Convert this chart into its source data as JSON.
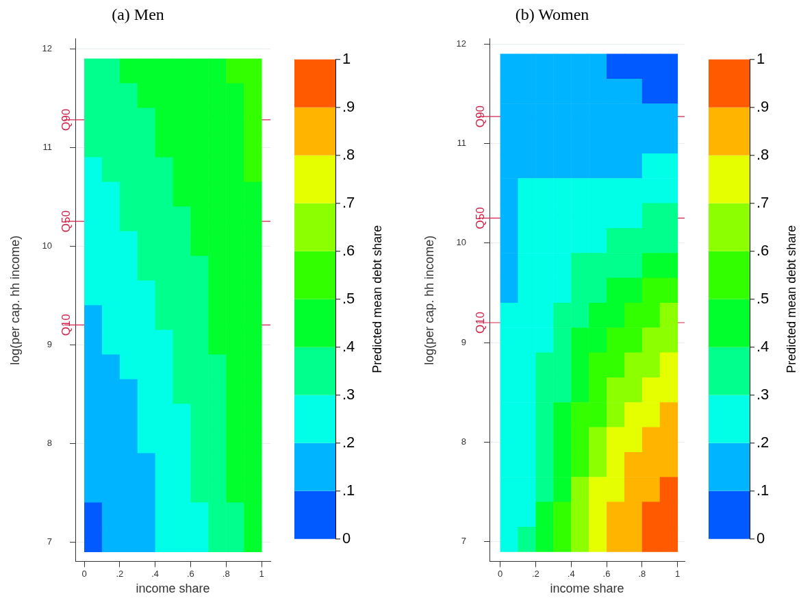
{
  "chart_data": [
    {
      "type": "heatmap",
      "title": "(a) Men",
      "xlabel": "income share",
      "ylabel": "log(per cap. hh income)",
      "clabel": "Predicted mean debt share",
      "x": [
        0.05,
        0.15,
        0.25,
        0.35,
        0.45,
        0.55,
        0.65,
        0.75,
        0.85,
        0.95
      ],
      "y": [
        11.775,
        11.525,
        11.275,
        11.025,
        10.775,
        10.525,
        10.275,
        10.025,
        9.775,
        9.525,
        9.275,
        9.025,
        8.775,
        8.525,
        8.275,
        8.025,
        7.775,
        7.525,
        7.275,
        7.025
      ],
      "cells": [
        [
          0.35,
          0.35,
          0.45,
          0.45,
          0.45,
          0.45,
          0.45,
          0.45,
          0.55,
          0.55
        ],
        [
          0.35,
          0.35,
          0.35,
          0.45,
          0.45,
          0.45,
          0.45,
          0.45,
          0.45,
          0.55
        ],
        [
          0.35,
          0.35,
          0.35,
          0.35,
          0.45,
          0.45,
          0.45,
          0.45,
          0.45,
          0.55
        ],
        [
          0.35,
          0.35,
          0.35,
          0.35,
          0.45,
          0.45,
          0.45,
          0.45,
          0.45,
          0.55
        ],
        [
          0.25,
          0.35,
          0.35,
          0.35,
          0.35,
          0.45,
          0.45,
          0.45,
          0.45,
          0.55
        ],
        [
          0.25,
          0.25,
          0.35,
          0.35,
          0.35,
          0.45,
          0.45,
          0.45,
          0.45,
          0.45
        ],
        [
          0.25,
          0.25,
          0.35,
          0.35,
          0.35,
          0.35,
          0.45,
          0.45,
          0.45,
          0.45
        ],
        [
          0.25,
          0.25,
          0.25,
          0.35,
          0.35,
          0.35,
          0.45,
          0.45,
          0.45,
          0.45
        ],
        [
          0.25,
          0.25,
          0.25,
          0.35,
          0.35,
          0.35,
          0.35,
          0.45,
          0.45,
          0.45
        ],
        [
          0.25,
          0.25,
          0.25,
          0.25,
          0.35,
          0.35,
          0.35,
          0.45,
          0.45,
          0.45
        ],
        [
          0.15,
          0.25,
          0.25,
          0.25,
          0.35,
          0.35,
          0.35,
          0.45,
          0.45,
          0.45
        ],
        [
          0.15,
          0.25,
          0.25,
          0.25,
          0.25,
          0.35,
          0.35,
          0.45,
          0.45,
          0.45
        ],
        [
          0.15,
          0.15,
          0.25,
          0.25,
          0.25,
          0.35,
          0.35,
          0.35,
          0.45,
          0.45
        ],
        [
          0.15,
          0.15,
          0.15,
          0.25,
          0.25,
          0.35,
          0.35,
          0.35,
          0.45,
          0.45
        ],
        [
          0.15,
          0.15,
          0.15,
          0.25,
          0.25,
          0.25,
          0.35,
          0.35,
          0.45,
          0.45
        ],
        [
          0.15,
          0.15,
          0.15,
          0.25,
          0.25,
          0.25,
          0.35,
          0.35,
          0.45,
          0.45
        ],
        [
          0.15,
          0.15,
          0.15,
          0.15,
          0.25,
          0.25,
          0.35,
          0.35,
          0.45,
          0.45
        ],
        [
          0.15,
          0.15,
          0.15,
          0.15,
          0.25,
          0.25,
          0.35,
          0.35,
          0.45,
          0.45
        ],
        [
          0.05,
          0.15,
          0.15,
          0.15,
          0.25,
          0.25,
          0.25,
          0.35,
          0.35,
          0.45
        ],
        [
          0.05,
          0.15,
          0.15,
          0.15,
          0.25,
          0.25,
          0.25,
          0.35,
          0.35,
          0.45
        ]
      ],
      "colors": [
        "#005aff",
        "#00b4ff",
        "#00ffe6",
        "#00ff8c",
        "#00ff2c",
        "#32ff00",
        "#8cff00",
        "#e6ff00",
        "#ffb400",
        "#ff5a00"
      ],
      "clim": [
        0,
        1
      ],
      "cticks": [
        {
          "value": 0,
          "label": "0"
        },
        {
          "value": 0.1,
          "label": ".1"
        },
        {
          "value": 0.2,
          "label": ".2"
        },
        {
          "value": 0.3,
          "label": ".3"
        },
        {
          "value": 0.4,
          "label": ".4"
        },
        {
          "value": 0.5,
          "label": ".5"
        },
        {
          "value": 0.6,
          "label": ".6"
        },
        {
          "value": 0.7,
          "label": ".7"
        },
        {
          "value": 0.8,
          "label": ".8"
        },
        {
          "value": 0.9,
          "label": ".9"
        },
        {
          "value": 1,
          "label": "1"
        }
      ],
      "xlim": [
        -0.05,
        1.05
      ],
      "xticks": [
        {
          "value": 0,
          "label": "0"
        },
        {
          "value": 0.2,
          "label": ".2"
        },
        {
          "value": 0.4,
          "label": ".4"
        },
        {
          "value": 0.6,
          "label": ".6"
        },
        {
          "value": 0.8,
          "label": ".8"
        },
        {
          "value": 1,
          "label": "1"
        }
      ],
      "ylim": [
        6.8,
        12.1
      ],
      "yticks": [
        7,
        8,
        9,
        10,
        11,
        12
      ],
      "ref_lines": [
        {
          "axis": "y",
          "value": 9.2,
          "label": "Q10",
          "color": "#d2234b"
        },
        {
          "axis": "y",
          "value": 10.25,
          "label": "Q50",
          "color": "#d2234b"
        },
        {
          "axis": "y",
          "value": 11.28,
          "label": "Q90",
          "color": "#d2234b"
        }
      ],
      "grid": "y"
    },
    {
      "type": "heatmap",
      "title": "(b) Women",
      "xlabel": "income share",
      "ylabel": "log(per cap. hh income)",
      "clabel": "Predicted mean debt share",
      "x": [
        0.05,
        0.15,
        0.25,
        0.35,
        0.45,
        0.55,
        0.65,
        0.75,
        0.85,
        0.95
      ],
      "y": [
        11.775,
        11.525,
        11.275,
        11.025,
        10.775,
        10.525,
        10.275,
        10.025,
        9.775,
        9.525,
        9.275,
        9.025,
        8.775,
        8.525,
        8.275,
        8.025,
        7.775,
        7.525,
        7.275,
        7.025
      ],
      "cells": [
        [
          0.15,
          0.15,
          0.15,
          0.15,
          0.15,
          0.15,
          0.05,
          0.05,
          0.05,
          0.05
        ],
        [
          0.15,
          0.15,
          0.15,
          0.15,
          0.15,
          0.15,
          0.15,
          0.15,
          0.05,
          0.05
        ],
        [
          0.15,
          0.15,
          0.15,
          0.15,
          0.15,
          0.15,
          0.15,
          0.15,
          0.15,
          0.15
        ],
        [
          0.15,
          0.15,
          0.15,
          0.15,
          0.15,
          0.15,
          0.15,
          0.15,
          0.15,
          0.15
        ],
        [
          0.15,
          0.15,
          0.15,
          0.15,
          0.15,
          0.15,
          0.15,
          0.15,
          0.25,
          0.25
        ],
        [
          0.15,
          0.25,
          0.25,
          0.25,
          0.25,
          0.25,
          0.25,
          0.25,
          0.25,
          0.25
        ],
        [
          0.15,
          0.25,
          0.25,
          0.25,
          0.25,
          0.25,
          0.25,
          0.25,
          0.35,
          0.35
        ],
        [
          0.15,
          0.25,
          0.25,
          0.25,
          0.25,
          0.25,
          0.35,
          0.35,
          0.35,
          0.35
        ],
        [
          0.15,
          0.25,
          0.25,
          0.25,
          0.35,
          0.35,
          0.35,
          0.35,
          0.45,
          0.45
        ],
        [
          0.15,
          0.25,
          0.25,
          0.25,
          0.35,
          0.35,
          0.45,
          0.45,
          0.55,
          0.55
        ],
        [
          0.25,
          0.25,
          0.25,
          0.35,
          0.35,
          0.45,
          0.45,
          0.55,
          0.55,
          0.65
        ],
        [
          0.25,
          0.25,
          0.25,
          0.35,
          0.45,
          0.45,
          0.55,
          0.55,
          0.65,
          0.65
        ],
        [
          0.25,
          0.25,
          0.35,
          0.35,
          0.45,
          0.55,
          0.55,
          0.65,
          0.65,
          0.75
        ],
        [
          0.25,
          0.25,
          0.35,
          0.35,
          0.45,
          0.55,
          0.65,
          0.65,
          0.75,
          0.75
        ],
        [
          0.25,
          0.25,
          0.35,
          0.45,
          0.55,
          0.55,
          0.65,
          0.75,
          0.75,
          0.85
        ],
        [
          0.25,
          0.25,
          0.35,
          0.45,
          0.55,
          0.65,
          0.75,
          0.75,
          0.85,
          0.85
        ],
        [
          0.25,
          0.25,
          0.35,
          0.45,
          0.55,
          0.65,
          0.75,
          0.85,
          0.85,
          0.85
        ],
        [
          0.25,
          0.25,
          0.35,
          0.45,
          0.65,
          0.75,
          0.75,
          0.85,
          0.85,
          0.95
        ],
        [
          0.25,
          0.25,
          0.45,
          0.55,
          0.65,
          0.75,
          0.85,
          0.85,
          0.95,
          0.95
        ],
        [
          0.25,
          0.35,
          0.45,
          0.55,
          0.65,
          0.75,
          0.85,
          0.85,
          0.95,
          0.95
        ]
      ],
      "colors": [
        "#005aff",
        "#00b4ff",
        "#00ffe6",
        "#00ff8c",
        "#00ff2c",
        "#32ff00",
        "#8cff00",
        "#e6ff00",
        "#ffb400",
        "#ff5a00"
      ],
      "clim": [
        0,
        1
      ],
      "cticks": [
        {
          "value": 0,
          "label": "0"
        },
        {
          "value": 0.1,
          "label": ".1"
        },
        {
          "value": 0.2,
          "label": ".2"
        },
        {
          "value": 0.3,
          "label": ".3"
        },
        {
          "value": 0.4,
          "label": ".4"
        },
        {
          "value": 0.5,
          "label": ".5"
        },
        {
          "value": 0.6,
          "label": ".6"
        },
        {
          "value": 0.7,
          "label": ".7"
        },
        {
          "value": 0.8,
          "label": ".8"
        },
        {
          "value": 0.9,
          "label": ".9"
        },
        {
          "value": 1,
          "label": "1"
        }
      ],
      "xlim": [
        -0.06,
        1.04
      ],
      "xticks": [
        {
          "value": 0,
          "label": "0"
        },
        {
          "value": 0.2,
          "label": ".2"
        },
        {
          "value": 0.4,
          "label": ".4"
        },
        {
          "value": 0.6,
          "label": ".6"
        },
        {
          "value": 0.8,
          "label": ".8"
        },
        {
          "value": 1,
          "label": "1"
        }
      ],
      "ylim": [
        6.8,
        12.05
      ],
      "yticks": [
        7,
        8,
        9,
        10,
        11,
        12
      ],
      "ref_lines": [
        {
          "axis": "y",
          "value": 9.2,
          "label": "Q10",
          "color": "#d2234b"
        },
        {
          "axis": "y",
          "value": 10.25,
          "label": "Q50",
          "color": "#d2234b"
        },
        {
          "axis": "y",
          "value": 11.27,
          "label": "Q90",
          "color": "#d2234b"
        }
      ],
      "grid": "y"
    }
  ]
}
